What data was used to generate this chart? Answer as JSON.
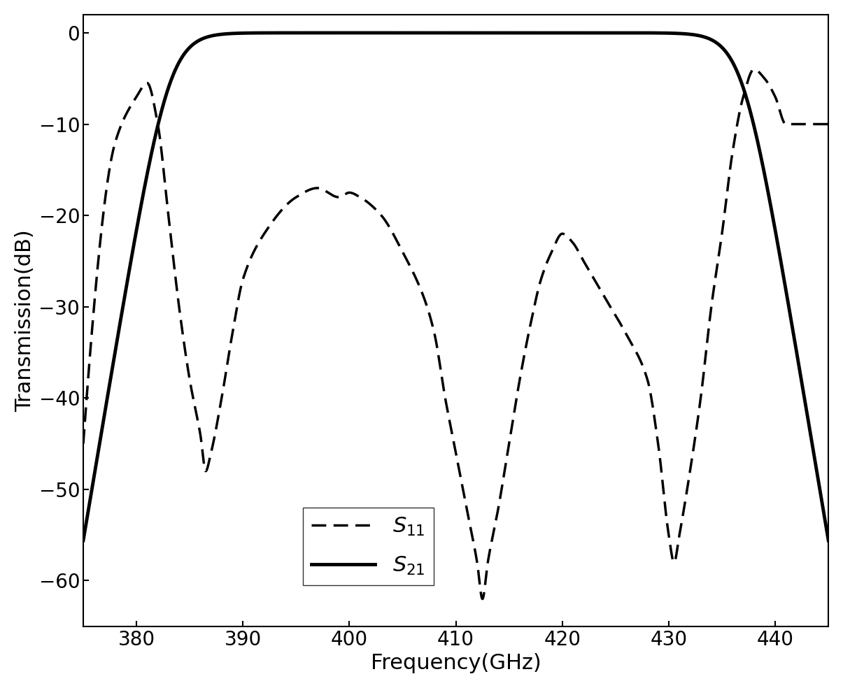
{
  "xlim": [
    375,
    445
  ],
  "ylim": [
    -65,
    2
  ],
  "xticks": [
    380,
    390,
    400,
    410,
    420,
    430,
    440
  ],
  "yticks": [
    0,
    -10,
    -20,
    -30,
    -40,
    -50,
    -60
  ],
  "xlabel": "Frequency(GHz)",
  "ylabel": "Transmission(dB)",
  "xlabel_fontsize": 22,
  "ylabel_fontsize": 22,
  "tick_fontsize": 20,
  "line_color": "#000000",
  "background_color": "#ffffff",
  "legend_S11": "S$_{11}$",
  "legend_S21": "S$_{21}$",
  "legend_fontsize": 22,
  "s21_linewidth": 3.5,
  "s11_linewidth": 2.5,
  "figsize": [
    12.05,
    9.84
  ],
  "dpi": 100
}
